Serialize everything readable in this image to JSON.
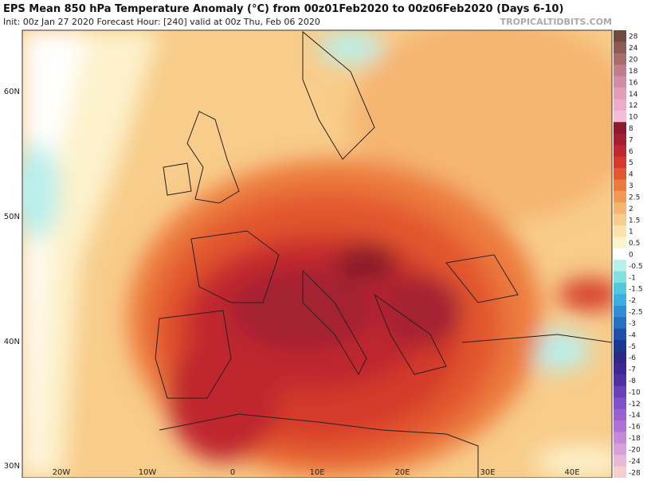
{
  "header": {
    "title": "EPS Mean 850 hPa Temperature Anomaly (°C) from 00z01Feb2020 to 00z06Feb2020 (Days 6-10)",
    "subtitle": "Init: 00z Jan 27 2020   Forecast Hour: [240]   valid at 00z Thu, Feb 06 2020",
    "watermark": "TROPICALTIDBITS.COM"
  },
  "map": {
    "lat_labels": [
      "60N",
      "50N",
      "40N",
      "30N"
    ],
    "lon_labels": [
      "20W",
      "10W",
      "0",
      "10E",
      "20E",
      "30E",
      "40E"
    ]
  },
  "colorbar": [
    {
      "label": "28",
      "color": "#6e4b3e"
    },
    {
      "label": "24",
      "color": "#8c5c52"
    },
    {
      "label": "20",
      "color": "#a86c6c"
    },
    {
      "label": "18",
      "color": "#c27c8c"
    },
    {
      "label": "16",
      "color": "#d48ca2"
    },
    {
      "label": "14",
      "color": "#e49cb8"
    },
    {
      "label": "12",
      "color": "#f0aacb"
    },
    {
      "label": "10",
      "color": "#f4bcd6"
    },
    {
      "label": "8",
      "color": "#8a1a2c"
    },
    {
      "label": "7",
      "color": "#a42030"
    },
    {
      "label": "6",
      "color": "#bf282e"
    },
    {
      "label": "5",
      "color": "#d43a2c"
    },
    {
      "label": "4",
      "color": "#e2572f"
    },
    {
      "label": "3",
      "color": "#ec7a3e"
    },
    {
      "label": "2.5",
      "color": "#f19a56"
    },
    {
      "label": "2",
      "color": "#f5b571"
    },
    {
      "label": "1.5",
      "color": "#f8cc8a"
    },
    {
      "label": "1",
      "color": "#fbe1aa"
    },
    {
      "label": "0.5",
      "color": "#fdf2cc"
    },
    {
      "label": "0",
      "color": "#ffffff"
    },
    {
      "label": "-0.5",
      "color": "#b8f0ee"
    },
    {
      "label": "-1",
      "color": "#82e0e0"
    },
    {
      "label": "-1.5",
      "color": "#52c8e0"
    },
    {
      "label": "-2",
      "color": "#3caee0"
    },
    {
      "label": "-2.5",
      "color": "#2f8fd0"
    },
    {
      "label": "-3",
      "color": "#2670c0"
    },
    {
      "label": "-4",
      "color": "#1e50a8"
    },
    {
      "label": "-5",
      "color": "#183890"
    },
    {
      "label": "-6",
      "color": "#2a2a80"
    },
    {
      "label": "-7",
      "color": "#3c2890"
    },
    {
      "label": "-8",
      "color": "#5030a0"
    },
    {
      "label": "-10",
      "color": "#6a40b8"
    },
    {
      "label": "-12",
      "color": "#8050c8"
    },
    {
      "label": "-14",
      "color": "#9a60d0"
    },
    {
      "label": "-16",
      "color": "#b070d8"
    },
    {
      "label": "-18",
      "color": "#c888d8"
    },
    {
      "label": "-20",
      "color": "#d8a0d8"
    },
    {
      "label": "-24",
      "color": "#e8b8d8"
    },
    {
      "label": "-28",
      "color": "#f5cfcf"
    }
  ]
}
